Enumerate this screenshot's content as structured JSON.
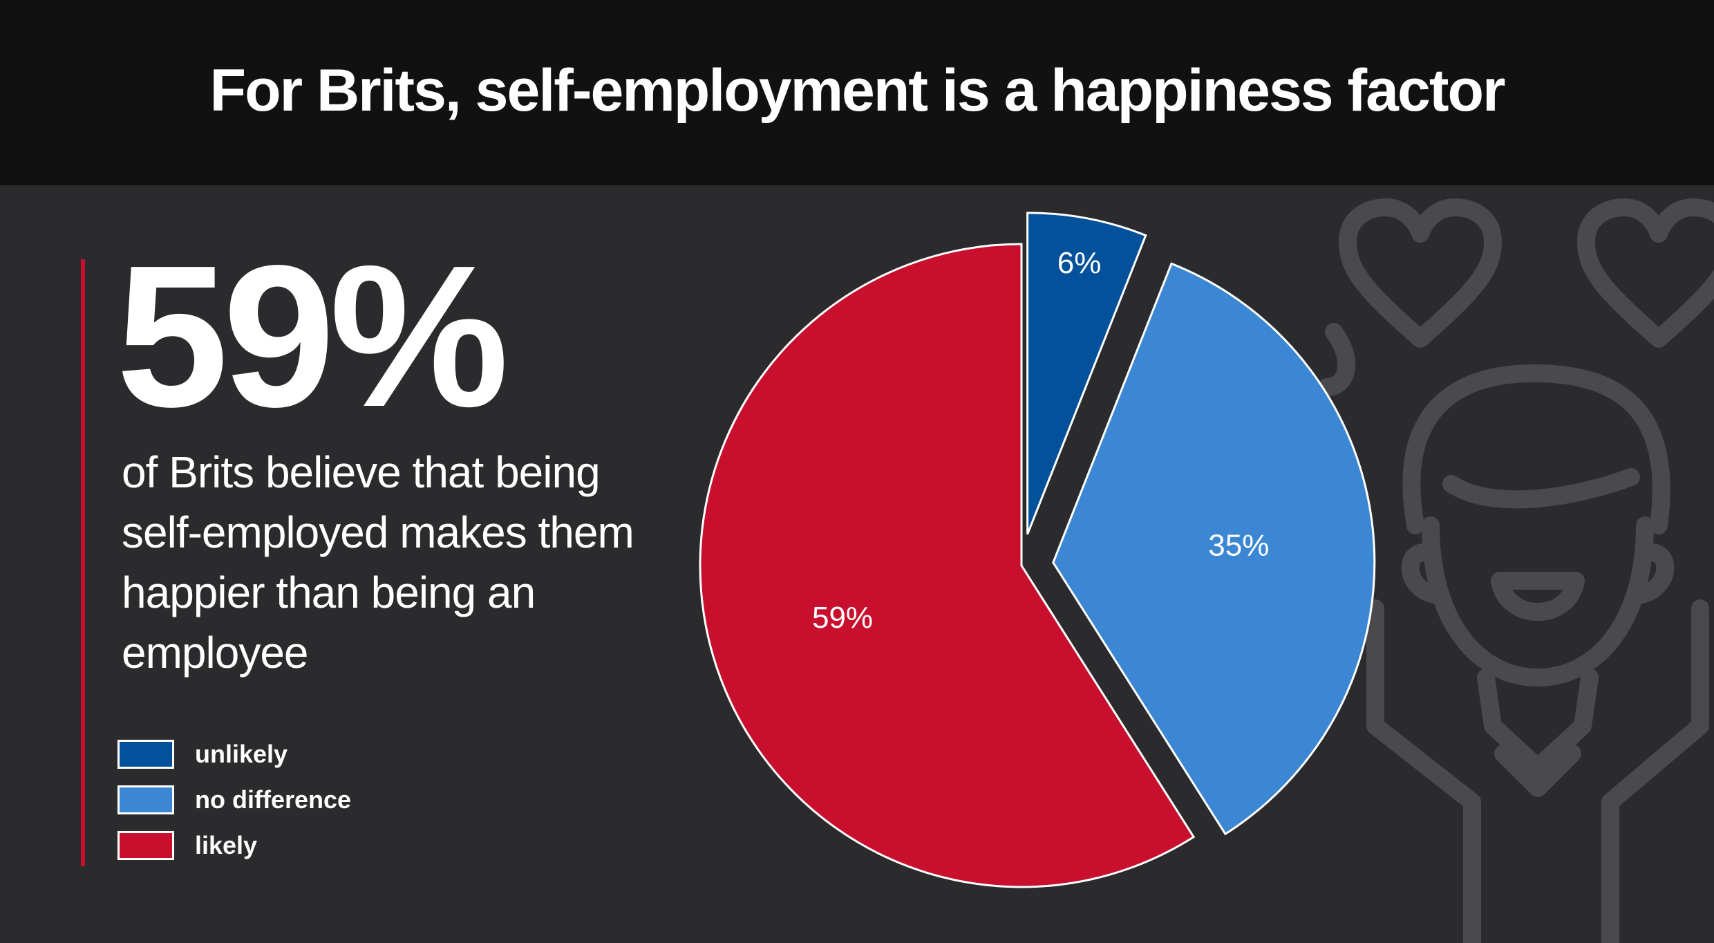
{
  "header": {
    "title": "For Brits, self-employment is a happiness factor"
  },
  "highlight": {
    "stat": "59%",
    "caption": "of Brits believe that being self-employed makes them happier than being an employee"
  },
  "colors": {
    "accent": "#c8102e",
    "unlikely": "#02519a",
    "no_difference": "#3c87d3",
    "likely": "#c8102e"
  },
  "decoration": {
    "icon": "happy-person-with-hearts-icon"
  },
  "chart_data": {
    "type": "pie",
    "title": "",
    "legend_position": "bottom-left",
    "slices": [
      {
        "label": "unlikely",
        "value": 6,
        "display": "6%",
        "color": "#02519a",
        "exploded": true
      },
      {
        "label": "no difference",
        "value": 35,
        "display": "35%",
        "color": "#3c87d3",
        "exploded": true
      },
      {
        "label": "likely",
        "value": 59,
        "display": "59%",
        "color": "#c8102e",
        "exploded": false
      }
    ]
  }
}
